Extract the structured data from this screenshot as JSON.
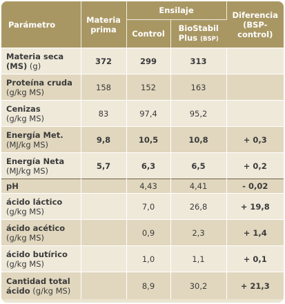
{
  "header": {
    "param": "Parámetro",
    "materia_line1": "Materia",
    "materia_line2": "prima",
    "ensilaje": "Ensilaje",
    "control": "Control",
    "biostabil_line1": "BioStabil",
    "biostabil_line2": "Plus",
    "biostabil_abbr": "(BSP)",
    "diferencia_line1": "Diferencia",
    "diferencia_line2": "(BSP-",
    "diferencia_line3": "control)"
  },
  "rows": [
    {
      "name": "Materia seca",
      "unit_pre": "(MS)",
      "unit": " (g)",
      "materia": "372",
      "control": "299",
      "biostabil": "313",
      "diferencia": ""
    },
    {
      "name": "Proteína cruda",
      "unit": "(g/kg MS)",
      "materia": "158",
      "control": "152",
      "biostabil": "163",
      "diferencia": ""
    },
    {
      "name": "Cenizas",
      "unit": "(g/kg MS)",
      "materia": "83",
      "control": "97,4",
      "biostabil": "95,2",
      "diferencia": ""
    },
    {
      "name": "Energía Met.",
      "unit": "(MJ/kg MS)",
      "materia": "9,8",
      "control": "10,5",
      "biostabil": "10,8",
      "diferencia": "+ 0,3"
    },
    {
      "name": "Energía Neta",
      "unit": "(MJ/kg MS)",
      "materia": "5,7",
      "control": "6,3",
      "biostabil": "6,5",
      "diferencia": "+ 0,2"
    },
    {
      "name": "pH",
      "unit": "",
      "materia": "",
      "control": "4,43",
      "biostabil": "4,41",
      "diferencia": "- 0,02"
    },
    {
      "name": "ácido láctico",
      "unit": "(g/kg MS)",
      "materia": "",
      "control": "7,0",
      "biostabil": "26,8",
      "diferencia": "+ 19,8"
    },
    {
      "name": "ácido acético",
      "unit": "(g/kg MS)",
      "materia": "",
      "control": "0,9",
      "biostabil": "2,3",
      "diferencia": "+ 1,4"
    },
    {
      "name": "ácido butírico",
      "unit": "(g/kg MS)",
      "materia": "",
      "control": "1,0",
      "biostabil": "1,1",
      "diferencia": "+ 0,1"
    },
    {
      "name": "Cantidad total",
      "unit_pre": "ácido",
      "unit": " (g/kg MS)",
      "materia": "",
      "control": "8,9",
      "biostabil": "30,2",
      "diferencia": "+ 21,3"
    }
  ],
  "colors": {
    "header_bg": "#a99763",
    "row_light": "#efe9da",
    "row_dark": "#e1d7be"
  }
}
